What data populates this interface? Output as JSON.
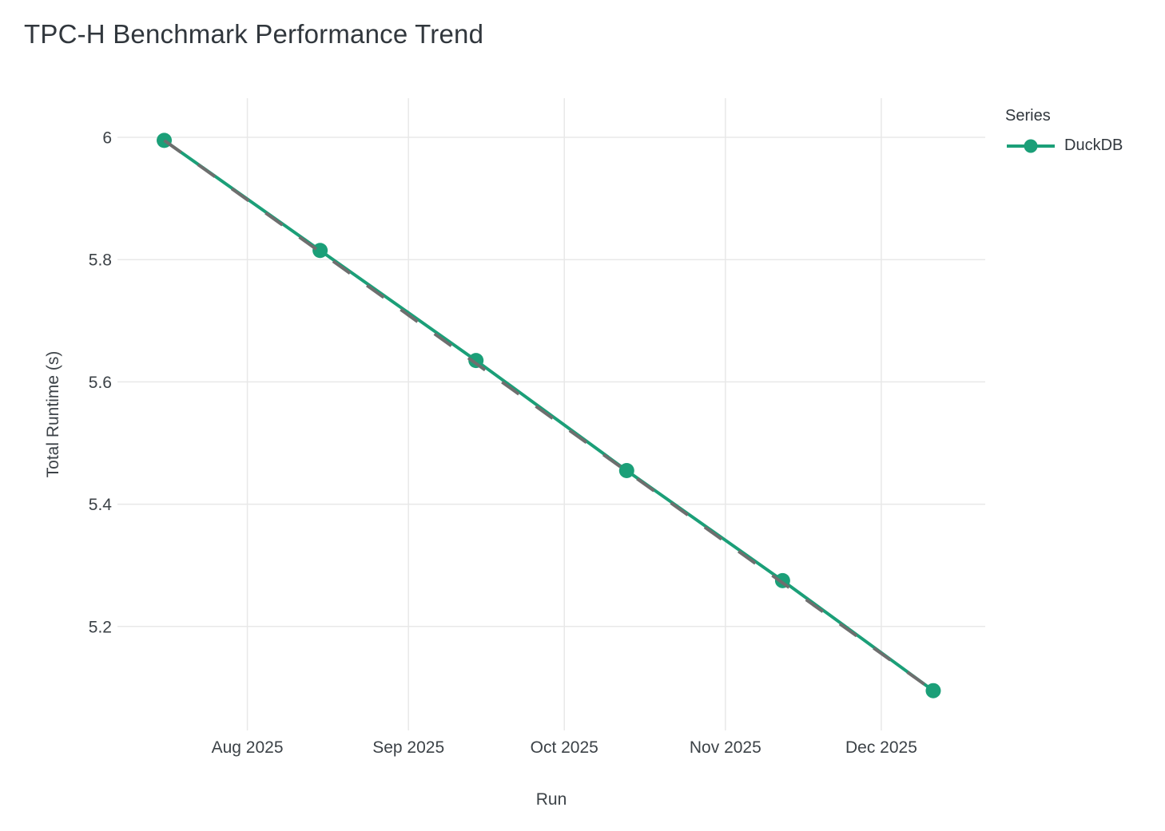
{
  "chart_data": {
    "type": "line",
    "title": "TPC-H Benchmark Performance Trend",
    "xlabel": "Run",
    "ylabel": "Total Runtime (s)",
    "legend_title": "Series",
    "legend_position": "top-right",
    "grid": true,
    "x": [
      "2025-07-16",
      "2025-08-15",
      "2025-09-14",
      "2025-10-13",
      "2025-11-12",
      "2025-12-11"
    ],
    "series": [
      {
        "name": "DuckDB",
        "color": "#1b9f78",
        "values": [
          5.995,
          5.815,
          5.635,
          5.455,
          5.275,
          5.095
        ]
      }
    ],
    "trendline": {
      "style": "dashed",
      "color": "#6e6e6e",
      "from": {
        "x": "2025-07-16",
        "y": 5.995
      },
      "to": {
        "x": "2025-12-11",
        "y": 5.095
      }
    },
    "x_ticks": [
      {
        "label": "Aug 2025",
        "date": "2025-08-01"
      },
      {
        "label": "Sep 2025",
        "date": "2025-09-01"
      },
      {
        "label": "Oct 2025",
        "date": "2025-10-01"
      },
      {
        "label": "Nov 2025",
        "date": "2025-11-01"
      },
      {
        "label": "Dec 2025",
        "date": "2025-12-01"
      }
    ],
    "y_ticks": [
      {
        "label": "6",
        "value": 6.0
      },
      {
        "label": "5.8",
        "value": 5.8
      },
      {
        "label": "5.6",
        "value": 5.6
      },
      {
        "label": "5.4",
        "value": 5.4
      },
      {
        "label": "5.2",
        "value": 5.2
      }
    ],
    "x_domain": [
      "2025-07-07",
      "2025-12-21"
    ],
    "y_domain": [
      5.03,
      6.064
    ],
    "colors": {
      "grid": "#e8e8e8",
      "axis_text": "#3c4247",
      "title_text": "#31373d"
    }
  }
}
